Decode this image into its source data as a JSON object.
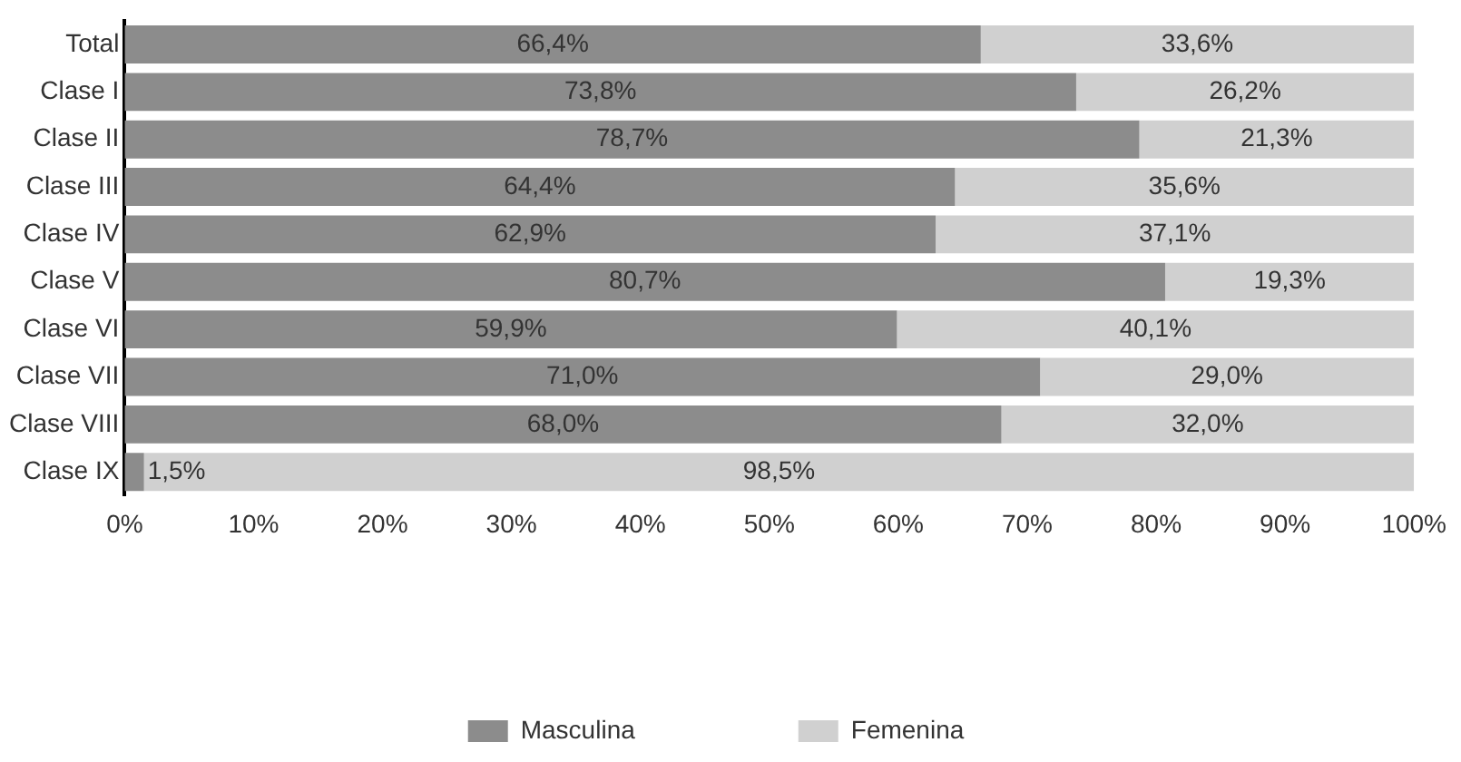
{
  "chart_data": {
    "type": "bar",
    "orientation": "horizontal",
    "stacked": true,
    "grid": false,
    "legend": "bottom",
    "categories": [
      "Total",
      "Clase I",
      "Clase II",
      "Clase III",
      "Clase IV",
      "Clase V",
      "Clase VI",
      "Clase VII",
      "Clase VIII",
      "Clase IX"
    ],
    "series": [
      {
        "name": "Masculina",
        "color": "#8c8c8c",
        "values": [
          66.4,
          73.8,
          78.7,
          64.4,
          62.9,
          80.7,
          59.9,
          71.0,
          68.0,
          1.5
        ],
        "value_labels": [
          "66,4%",
          "73,8%",
          "78,7%",
          "64,4%",
          "62,9%",
          "80,7%",
          "59,9%",
          "71,0%",
          "68,0%",
          "1,5%"
        ]
      },
      {
        "name": "Femenina",
        "color": "#d0d0d0",
        "values": [
          33.6,
          26.2,
          21.3,
          35.6,
          37.1,
          19.3,
          40.1,
          29.0,
          32.0,
          98.5
        ],
        "value_labels": [
          "33,6%",
          "26,2%",
          "21,3%",
          "35,6%",
          "37,1%",
          "19,3%",
          "40,1%",
          "29,0%",
          "32,0%",
          "98,5%"
        ]
      }
    ],
    "xlim": [
      0,
      100
    ],
    "xticks": [
      {
        "value": 0,
        "label": "0%"
      },
      {
        "value": 10,
        "label": "10%"
      },
      {
        "value": 20,
        "label": "20%"
      },
      {
        "value": 30,
        "label": "30%"
      },
      {
        "value": 40,
        "label": "40%"
      },
      {
        "value": 50,
        "label": "50%"
      },
      {
        "value": 60,
        "label": "60%"
      },
      {
        "value": 70,
        "label": "70%"
      },
      {
        "value": 80,
        "label": "80%"
      },
      {
        "value": 90,
        "label": "90%"
      },
      {
        "value": 100,
        "label": "100%"
      }
    ]
  }
}
